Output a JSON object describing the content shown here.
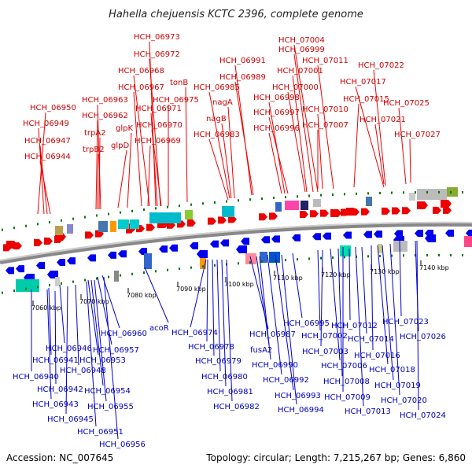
{
  "title": "Hahella chejuensis KCTC 2396, complete genome",
  "footer": {
    "accession": "Accession: NC_007645",
    "summary": "Topology: circular; Length: 7,215,267 bp; Genes: 6,860"
  },
  "colors": {
    "forward": "#ee0000",
    "reverse": "#0000ee",
    "backbone": "#999999",
    "tick": "#007700"
  },
  "ticks": [
    "7060 kbp",
    "7070 kbp",
    "7080 kbp",
    "7090 kbp",
    "7100 kbp",
    "7110 kbp",
    "7120 kbp",
    "7130 kbp",
    "7140 kbp"
  ],
  "top_labels": [
    "HCH_06973",
    "HCH_06972",
    "HCH_06968",
    "HCH_06967",
    "HCH_06963",
    "HCH_06971",
    "HCH_06975",
    "tonB",
    "HCH_06962",
    "glpK",
    "HCH_06970",
    "glpD",
    "HCH_06969",
    "trpA2",
    "trpB2",
    "HCH_06950",
    "HCH_06949",
    "HCH_06947",
    "HCH_06944",
    "HCH_06991",
    "HCH_06989",
    "HCH_06985",
    "nagA",
    "nagB",
    "HCH_06983",
    "HCH_07004",
    "HCH_06999",
    "HCH_07011",
    "HCH_07001",
    "HCH_07000",
    "HCH_06998",
    "HCH_06997",
    "HCH_07010",
    "HCH_07007",
    "HCH_06996",
    "HCH_07022",
    "HCH_07017",
    "HCH_07015",
    "HCH_07025",
    "HCH_07021",
    "HCH_07027"
  ],
  "bottom_labels": [
    "HCH_06960",
    "HCH_06946",
    "HCH_06957",
    "HCH_06941",
    "HCH_06953",
    "HCH_06948",
    "HCH_06940",
    "HCH_06942",
    "HCH_06954",
    "HCH_06943",
    "HCH_06955",
    "HCH_06945",
    "HCH_06951",
    "HCH_06956",
    "acoR",
    "HCH_06974",
    "HCH_06978",
    "HCH_06979",
    "HCH_06980",
    "HCH_06981",
    "HCH_06982",
    "HCH_06987",
    "fusA2",
    "HCH_06990",
    "HCH_06992",
    "HCH_06993",
    "HCH_06994",
    "HCH_06995",
    "HCH_07002",
    "HCH_07003",
    "HCH_07006",
    "HCH_07008",
    "HCH_07009",
    "HCH_07013",
    "HCH_07012",
    "HCH_07014",
    "HCH_07016",
    "HCH_07018",
    "HCH_07019",
    "HCH_07020",
    "HCH_07023",
    "HCH_07026",
    "HCH_07024"
  ]
}
